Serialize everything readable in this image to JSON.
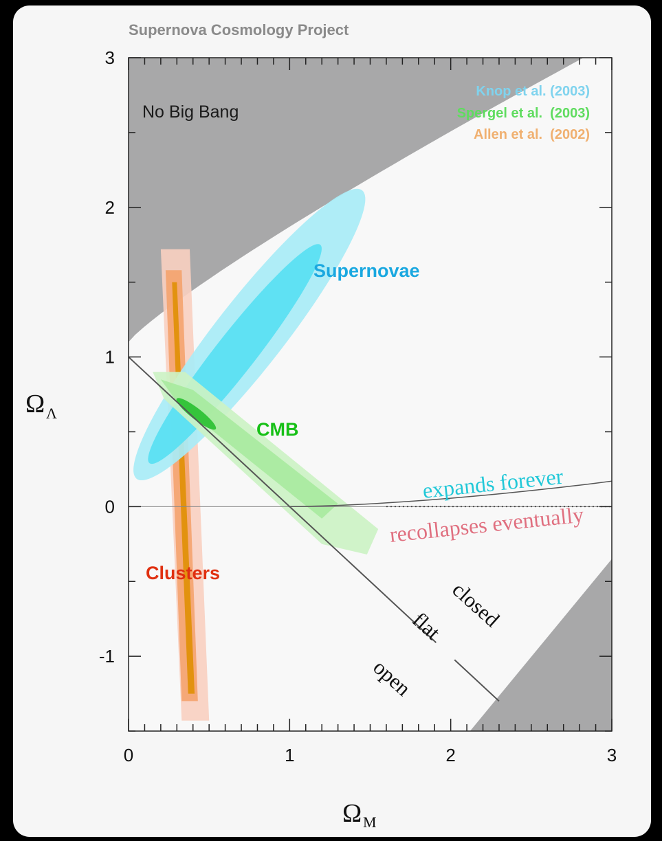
{
  "chart_data": {
    "type": "contour",
    "source_label": "Supernova Cosmology Project",
    "xlabel": "Ω",
    "xlabel_sub": "M",
    "ylabel": "Ω",
    "ylabel_sub": "Λ",
    "xlim": [
      0,
      3
    ],
    "ylim": [
      -1.5,
      3
    ],
    "x_ticks": [
      {
        "value": 0,
        "label": "0"
      },
      {
        "value": 1,
        "label": "1"
      },
      {
        "value": 2,
        "label": "2"
      },
      {
        "value": 3,
        "label": "3"
      }
    ],
    "y_ticks": [
      {
        "value": 3,
        "label": "3"
      },
      {
        "value": 2,
        "label": "2"
      },
      {
        "value": 1,
        "label": "1"
      },
      {
        "value": 0,
        "label": "0"
      },
      {
        "value": -1,
        "label": "-1"
      }
    ],
    "legend": [
      {
        "label": "Knop et al. (2003)",
        "color": "#7fd3ee"
      },
      {
        "label": "Spergel et al.  (2003)",
        "color": "#5fdc5f"
      },
      {
        "label": "Allen et al.  (2002)",
        "color": "#f0b070"
      }
    ],
    "regions": [
      {
        "label": "No Big Bang"
      },
      {
        "label": "Supernovae",
        "color": "#1aa8e0",
        "center": [
          0.75,
          1.15
        ],
        "semi_major": 1.05,
        "semi_minor": 0.2,
        "angle_deg": 52
      },
      {
        "label": "CMB",
        "color": "#18c018",
        "from": [
          0.2,
          0.85
        ],
        "to": [
          1.45,
          -0.2
        ]
      },
      {
        "label": "Clusters",
        "color": "#e03010",
        "x_center": 0.35,
        "y_range": [
          -1.35,
          1.65
        ]
      }
    ],
    "lines": [
      {
        "label": "flat",
        "from": [
          0,
          1
        ],
        "to": [
          2.3,
          -1.3
        ]
      },
      {
        "label": "expands forever",
        "color": "#22c8d8"
      },
      {
        "label": "recollapses eventually",
        "color": "#e07080"
      }
    ],
    "annotations": [
      "closed",
      "open"
    ],
    "colors": {
      "forbidden_gray": "#a8a8a9",
      "sn_outer": "#a8ecf6",
      "sn_inner": "#5be0f2",
      "cmb_outer": "#ccf2c4",
      "cmb_mid": "#a0e896",
      "cmb_inner": "#28c030",
      "cl_outer": "#f8cfc0",
      "cl_mid": "#f4a068",
      "cl_inner": "#e0900a"
    }
  }
}
